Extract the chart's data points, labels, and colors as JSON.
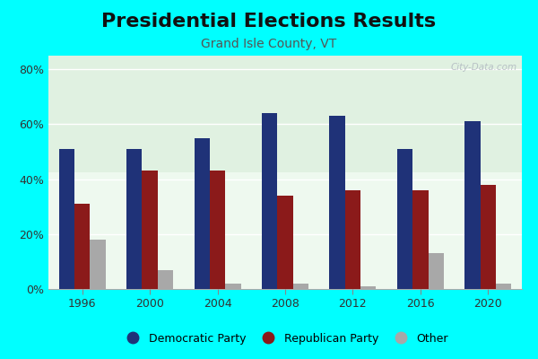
{
  "title": "Presidential Elections Results",
  "subtitle": "Grand Isle County, VT",
  "years": [
    1996,
    2000,
    2004,
    2008,
    2012,
    2016,
    2020
  ],
  "democratic": [
    51,
    51,
    55,
    64,
    63,
    51,
    61
  ],
  "republican": [
    31,
    43,
    43,
    34,
    36,
    36,
    38
  ],
  "other": [
    18,
    7,
    2,
    2,
    1,
    13,
    2
  ],
  "dem_color": "#1f3278",
  "rep_color": "#8b1a1a",
  "other_color": "#a8a8a8",
  "bg_outer": "#00ffff",
  "bg_plot": "#e8f5ea",
  "ylim": [
    0,
    85
  ],
  "yticks": [
    0,
    20,
    40,
    60,
    80
  ],
  "ytick_labels": [
    "0%",
    "20%",
    "40%",
    "60%",
    "80%"
  ],
  "bar_width": 0.23,
  "title_fontsize": 16,
  "subtitle_fontsize": 10,
  "watermark": "City-Data.com",
  "legend_labels": [
    "Democratic Party",
    "Republican Party",
    "Other"
  ]
}
